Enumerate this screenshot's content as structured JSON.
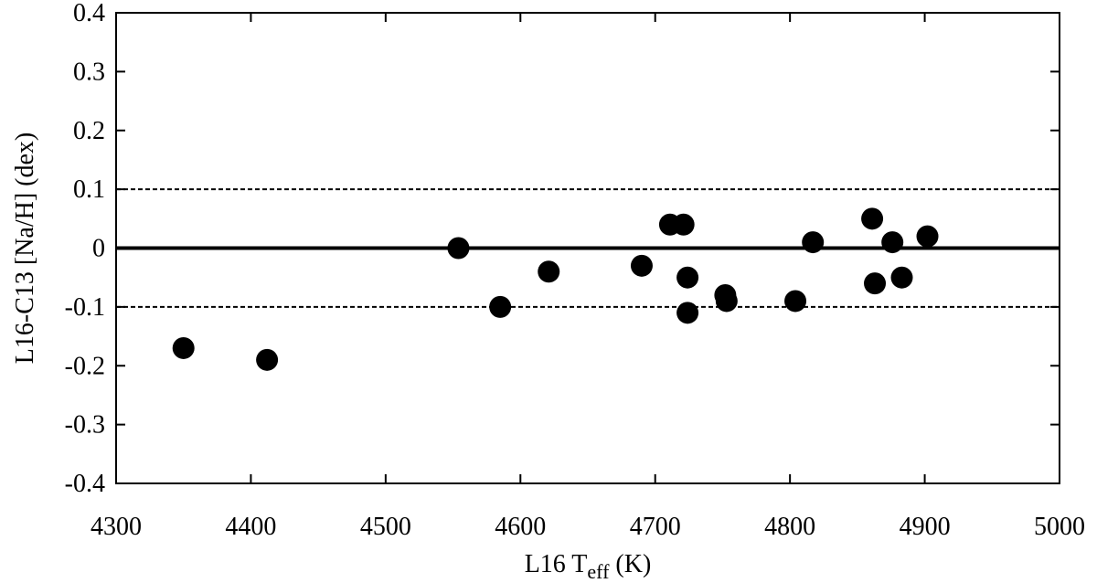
{
  "chart_data": {
    "type": "scatter",
    "xlabel": {
      "prefix": "L16 T",
      "sub": "eff",
      "suffix": " (K)"
    },
    "ylabel": "L16-C13 [Na/H] (dex)",
    "xlim": [
      4300,
      5000
    ],
    "ylim": [
      -0.4,
      0.4
    ],
    "x_ticks": [
      4300,
      4400,
      4500,
      4600,
      4700,
      4800,
      4900,
      5000
    ],
    "x_tick_labels": [
      "4300",
      "4400",
      "4500",
      "4600",
      "4700",
      "4800",
      "4900",
      "5000"
    ],
    "y_ticks": [
      0.4,
      0.3,
      0.2,
      0.1,
      0,
      -0.1,
      -0.2,
      -0.3,
      -0.4
    ],
    "y_tick_labels": [
      "0.4",
      "0.3",
      "0.2",
      "0.1",
      "0",
      "-0.1",
      "-0.2",
      "-0.3",
      "-0.4"
    ],
    "reference_lines": [
      {
        "y": 0.1,
        "style": "dashed"
      },
      {
        "y": 0,
        "style": "solid"
      },
      {
        "y": -0.1,
        "style": "dashed"
      }
    ],
    "grid": false,
    "marker_color": "#000000",
    "points": [
      {
        "x": 4350,
        "y": -0.17
      },
      {
        "x": 4412,
        "y": -0.19
      },
      {
        "x": 4554,
        "y": 0.0
      },
      {
        "x": 4585,
        "y": -0.1
      },
      {
        "x": 4621,
        "y": -0.04
      },
      {
        "x": 4690,
        "y": -0.03
      },
      {
        "x": 4711,
        "y": 0.04
      },
      {
        "x": 4721,
        "y": 0.04
      },
      {
        "x": 4724,
        "y": -0.05
      },
      {
        "x": 4724,
        "y": -0.11
      },
      {
        "x": 4752,
        "y": -0.08
      },
      {
        "x": 4753,
        "y": -0.09
      },
      {
        "x": 4804,
        "y": -0.09
      },
      {
        "x": 4817,
        "y": 0.01
      },
      {
        "x": 4861,
        "y": 0.05
      },
      {
        "x": 4863,
        "y": -0.06
      },
      {
        "x": 4876,
        "y": 0.01
      },
      {
        "x": 4883,
        "y": -0.05
      },
      {
        "x": 4902,
        "y": 0.02
      }
    ]
  }
}
